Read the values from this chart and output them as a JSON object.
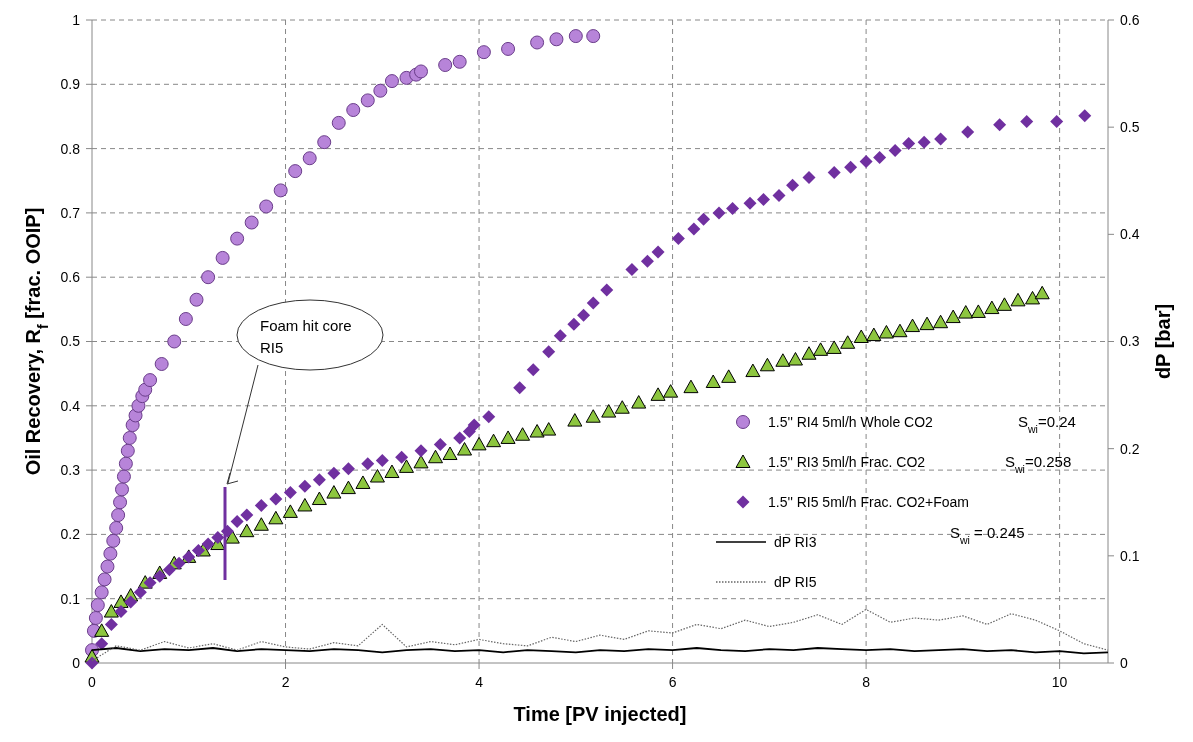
{
  "chart_data": {
    "type": "scatter",
    "xlabel": "Time [PV injected]",
    "ylabel": "Oil Recovery, R$_{f}$ [frac. OOIP]",
    "y2label": "dP [bar]",
    "xlim": [
      0,
      10.5
    ],
    "xticks": [
      0,
      2,
      4,
      6,
      8,
      10
    ],
    "ylim": [
      0,
      1
    ],
    "yticks": [
      0,
      0.1,
      0.2,
      0.3,
      0.4,
      0.5,
      0.6,
      0.7,
      0.8,
      0.9,
      1
    ],
    "y2lim": [
      0,
      0.6
    ],
    "y2ticks": [
      0,
      0.1,
      0.2,
      0.3,
      0.4,
      0.5,
      0.6
    ],
    "grid": true,
    "legend": "right",
    "annotations": [
      "S$_{wi}$=0.24",
      "S$_{wi}$=0.258",
      "S$_{wi}$ = 0.245",
      "Foam hit core RI5"
    ],
    "series": [
      {
        "name": "1.5'' RI4 5ml/h Whole CO2",
        "marker": "circle",
        "color": "#b784d9",
        "x": [
          0,
          0.02,
          0.04,
          0.06,
          0.1,
          0.13,
          0.16,
          0.19,
          0.22,
          0.25,
          0.27,
          0.29,
          0.31,
          0.33,
          0.35,
          0.37,
          0.39,
          0.42,
          0.45,
          0.48,
          0.52,
          0.55,
          0.6,
          0.72,
          0.85,
          0.97,
          1.08,
          1.2,
          1.35,
          1.5,
          1.65,
          1.8,
          1.95,
          2.1,
          2.25,
          2.4,
          2.55,
          2.7,
          2.85,
          2.98,
          3.1,
          3.25,
          3.35,
          3.4,
          3.65,
          3.8,
          4.05,
          4.3,
          4.6,
          4.8,
          5.0,
          5.18
        ],
        "values": [
          0.02,
          0.05,
          0.07,
          0.09,
          0.11,
          0.13,
          0.15,
          0.17,
          0.19,
          0.21,
          0.23,
          0.25,
          0.27,
          0.29,
          0.31,
          0.33,
          0.35,
          0.37,
          0.385,
          0.4,
          0.415,
          0.425,
          0.44,
          0.465,
          0.5,
          0.535,
          0.565,
          0.6,
          0.63,
          0.66,
          0.685,
          0.71,
          0.735,
          0.765,
          0.785,
          0.81,
          0.84,
          0.86,
          0.875,
          0.89,
          0.905,
          0.91,
          0.915,
          0.92,
          0.93,
          0.935,
          0.95,
          0.955,
          0.965,
          0.97,
          0.975,
          0.975
        ]
      },
      {
        "name": "1.5'' RI3 5ml/h Frac. CO2",
        "marker": "triangle",
        "color": "#8dc63f",
        "x": [
          0,
          0.1,
          0.2,
          0.3,
          0.4,
          0.55,
          0.7,
          0.85,
          1.0,
          1.15,
          1.3,
          1.45,
          1.6,
          1.75,
          1.9,
          2.05,
          2.2,
          2.35,
          2.5,
          2.65,
          2.8,
          2.95,
          3.1,
          3.25,
          3.4,
          3.55,
          3.7,
          3.85,
          4.0,
          4.15,
          4.3,
          4.45,
          4.6,
          4.72,
          4.99,
          5.18,
          5.34,
          5.48,
          5.65,
          5.85,
          5.98,
          6.19,
          6.42,
          6.58,
          6.83,
          6.98,
          7.14,
          7.27,
          7.41,
          7.53,
          7.67,
          7.81,
          7.95,
          8.08,
          8.21,
          8.35,
          8.48,
          8.63,
          8.77,
          8.9,
          9.03,
          9.16,
          9.3,
          9.43,
          9.57,
          9.72,
          9.82
        ],
        "values": [
          0.01,
          0.05,
          0.08,
          0.095,
          0.105,
          0.125,
          0.14,
          0.155,
          0.165,
          0.175,
          0.185,
          0.195,
          0.205,
          0.215,
          0.225,
          0.235,
          0.245,
          0.255,
          0.265,
          0.272,
          0.28,
          0.29,
          0.297,
          0.305,
          0.312,
          0.32,
          0.325,
          0.332,
          0.34,
          0.345,
          0.35,
          0.355,
          0.36,
          0.363,
          0.377,
          0.383,
          0.391,
          0.397,
          0.405,
          0.417,
          0.422,
          0.429,
          0.437,
          0.445,
          0.454,
          0.463,
          0.47,
          0.472,
          0.481,
          0.487,
          0.49,
          0.498,
          0.507,
          0.51,
          0.514,
          0.516,
          0.524,
          0.527,
          0.53,
          0.538,
          0.545,
          0.546,
          0.552,
          0.557,
          0.564,
          0.567,
          0.575
        ]
      },
      {
        "name": "1.5'' RI5 5ml/h Frac. CO2+Foam",
        "marker": "diamond",
        "color": "#7030a0",
        "x": [
          0,
          0.1,
          0.2,
          0.3,
          0.4,
          0.5,
          0.6,
          0.7,
          0.8,
          0.9,
          1.0,
          1.1,
          1.2,
          1.3,
          1.4,
          1.5,
          1.6,
          1.75,
          1.9,
          2.05,
          2.2,
          2.35,
          2.5,
          2.65,
          2.85,
          3.0,
          3.2,
          3.4,
          3.6,
          3.8,
          3.9,
          3.95,
          4.1,
          4.42,
          4.56,
          4.72,
          4.84,
          4.98,
          5.08,
          5.18,
          5.32,
          5.58,
          5.74,
          5.85,
          6.06,
          6.22,
          6.32,
          6.48,
          6.62,
          6.8,
          6.94,
          7.1,
          7.24,
          7.41,
          7.67,
          7.84,
          8.0,
          8.14,
          8.3,
          8.44,
          8.6,
          8.77,
          9.05,
          9.38,
          9.66,
          9.97,
          10.26
        ],
        "values": [
          0,
          0.03,
          0.06,
          0.08,
          0.095,
          0.11,
          0.125,
          0.135,
          0.145,
          0.155,
          0.165,
          0.175,
          0.185,
          0.195,
          0.205,
          0.22,
          0.23,
          0.245,
          0.255,
          0.265,
          0.275,
          0.285,
          0.295,
          0.302,
          0.31,
          0.315,
          0.32,
          0.33,
          0.34,
          0.35,
          0.36,
          0.37,
          0.383,
          0.428,
          0.456,
          0.484,
          0.509,
          0.527,
          0.541,
          0.56,
          0.58,
          0.612,
          0.625,
          0.639,
          0.66,
          0.675,
          0.69,
          0.7,
          0.707,
          0.715,
          0.721,
          0.727,
          0.743,
          0.755,
          0.763,
          0.771,
          0.78,
          0.786,
          0.797,
          0.808,
          0.81,
          0.815,
          0.826,
          0.837,
          0.842,
          0.842,
          0.851
        ]
      },
      {
        "name": "dP RI3",
        "type": "line",
        "axis": "y2",
        "line_style": "solid",
        "color": "#000000",
        "x": [
          0,
          0.25,
          0.5,
          0.75,
          1,
          1.25,
          1.5,
          1.75,
          2,
          2.25,
          2.5,
          2.75,
          3,
          3.25,
          3.5,
          3.75,
          4,
          4.25,
          4.5,
          4.75,
          5,
          5.25,
          5.5,
          5.75,
          6,
          6.25,
          6.5,
          6.75,
          7,
          7.25,
          7.5,
          7.75,
          8,
          8.25,
          8.5,
          8.75,
          9,
          9.25,
          9.5,
          9.75,
          10,
          10.25,
          10.5
        ],
        "values": [
          0.012,
          0.014,
          0.011,
          0.013,
          0.012,
          0.014,
          0.011,
          0.013,
          0.012,
          0.011,
          0.013,
          0.012,
          0.01,
          0.012,
          0.013,
          0.011,
          0.012,
          0.01,
          0.012,
          0.011,
          0.01,
          0.012,
          0.011,
          0.013,
          0.012,
          0.014,
          0.012,
          0.011,
          0.013,
          0.012,
          0.014,
          0.013,
          0.012,
          0.013,
          0.011,
          0.012,
          0.013,
          0.011,
          0.012,
          0.01,
          0.011,
          0.009,
          0.01
        ]
      },
      {
        "name": "dP RI5",
        "type": "line",
        "axis": "y2",
        "line_style": "dotted",
        "color": "#666666",
        "x": [
          0,
          0.25,
          0.5,
          0.75,
          1,
          1.25,
          1.5,
          1.75,
          2,
          2.25,
          2.5,
          2.75,
          3,
          3.25,
          3.5,
          3.75,
          4,
          4.25,
          4.5,
          4.75,
          5,
          5.25,
          5.5,
          5.75,
          6,
          6.25,
          6.5,
          6.75,
          7,
          7.25,
          7.5,
          7.75,
          8,
          8.25,
          8.5,
          8.75,
          9,
          9.25,
          9.5,
          9.75,
          10,
          10.25,
          10.5
        ],
        "values": [
          0.002,
          0.016,
          0.012,
          0.02,
          0.014,
          0.018,
          0.012,
          0.02,
          0.015,
          0.013,
          0.019,
          0.016,
          0.036,
          0.015,
          0.02,
          0.017,
          0.022,
          0.018,
          0.016,
          0.024,
          0.02,
          0.026,
          0.022,
          0.03,
          0.028,
          0.036,
          0.032,
          0.04,
          0.034,
          0.038,
          0.045,
          0.036,
          0.05,
          0.038,
          0.042,
          0.04,
          0.044,
          0.036,
          0.046,
          0.04,
          0.03,
          0.018,
          0.012
        ]
      }
    ]
  }
}
